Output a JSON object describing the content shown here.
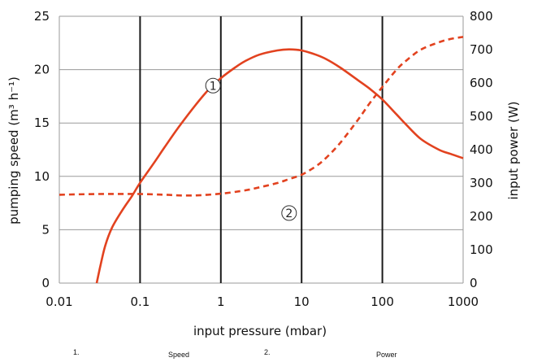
{
  "chart_data": {
    "type": "line",
    "xlabel": "input pressure (mbar)",
    "ylabel_left": "pumping speed (m³ h⁻¹)",
    "ylabel_right": "input power (W)",
    "x_scale": "log",
    "xlim": [
      0.01,
      1000
    ],
    "ylim_left": [
      0,
      25
    ],
    "ylim_right": [
      0,
      800
    ],
    "x_ticks": [
      {
        "value": 0.01,
        "label": "0.01"
      },
      {
        "value": 0.1,
        "label": "0.1"
      },
      {
        "value": 1,
        "label": "1"
      },
      {
        "value": 10,
        "label": "10"
      },
      {
        "value": 100,
        "label": "100"
      },
      {
        "value": 1000,
        "label": "1000"
      }
    ],
    "y_left_ticks": [
      {
        "value": 0,
        "label": "0"
      },
      {
        "value": 5,
        "label": "5"
      },
      {
        "value": 10,
        "label": "10"
      },
      {
        "value": 15,
        "label": "15"
      },
      {
        "value": 20,
        "label": "20"
      },
      {
        "value": 25,
        "label": "25"
      }
    ],
    "y_right_ticks": [
      {
        "value": 0,
        "label": "0"
      },
      {
        "value": 100,
        "label": "100"
      },
      {
        "value": 200,
        "label": "200"
      },
      {
        "value": 300,
        "label": "300"
      },
      {
        "value": 400,
        "label": "400"
      },
      {
        "value": 500,
        "label": "500"
      },
      {
        "value": 600,
        "label": "600"
      },
      {
        "value": 700,
        "label": "700"
      },
      {
        "value": 800,
        "label": "800"
      }
    ],
    "grid": true,
    "series": [
      {
        "marker": "1",
        "axis": "left",
        "line_style": "solid",
        "color": "#e2421f",
        "marker_at": {
          "x": 0.8,
          "y": 18.5
        },
        "points": [
          {
            "x": 0.029,
            "y": 0
          },
          {
            "x": 0.032,
            "y": 1.5
          },
          {
            "x": 0.037,
            "y": 3.5
          },
          {
            "x": 0.045,
            "y": 5.2
          },
          {
            "x": 0.06,
            "y": 6.8
          },
          {
            "x": 0.08,
            "y": 8.2
          },
          {
            "x": 0.1,
            "y": 9.4
          },
          {
            "x": 0.15,
            "y": 11.3
          },
          {
            "x": 0.2,
            "y": 12.7
          },
          {
            "x": 0.3,
            "y": 14.6
          },
          {
            "x": 0.5,
            "y": 16.8
          },
          {
            "x": 0.7,
            "y": 18.1
          },
          {
            "x": 1,
            "y": 19.2
          },
          {
            "x": 1.5,
            "y": 20.2
          },
          {
            "x": 2,
            "y": 20.8
          },
          {
            "x": 3,
            "y": 21.4
          },
          {
            "x": 5,
            "y": 21.8
          },
          {
            "x": 7,
            "y": 21.9
          },
          {
            "x": 10,
            "y": 21.8
          },
          {
            "x": 15,
            "y": 21.4
          },
          {
            "x": 20,
            "y": 21
          },
          {
            "x": 30,
            "y": 20.2
          },
          {
            "x": 50,
            "y": 19
          },
          {
            "x": 70,
            "y": 18.2
          },
          {
            "x": 100,
            "y": 17.2
          },
          {
            "x": 150,
            "y": 15.8
          },
          {
            "x": 200,
            "y": 14.8
          },
          {
            "x": 300,
            "y": 13.5
          },
          {
            "x": 500,
            "y": 12.5
          },
          {
            "x": 700,
            "y": 12.1
          },
          {
            "x": 1000,
            "y": 11.7
          }
        ]
      },
      {
        "marker": "2",
        "axis": "right",
        "line_style": "dashed",
        "color": "#e2421f",
        "marker_at": {
          "x": 7,
          "y": 210
        },
        "points": [
          {
            "x": 0.01,
            "y": 265
          },
          {
            "x": 0.03,
            "y": 267
          },
          {
            "x": 0.1,
            "y": 267
          },
          {
            "x": 0.2,
            "y": 265
          },
          {
            "x": 0.3,
            "y": 263
          },
          {
            "x": 0.5,
            "y": 263
          },
          {
            "x": 1,
            "y": 268
          },
          {
            "x": 2,
            "y": 278
          },
          {
            "x": 3,
            "y": 287
          },
          {
            "x": 5,
            "y": 300
          },
          {
            "x": 7,
            "y": 312
          },
          {
            "x": 10,
            "y": 325
          },
          {
            "x": 15,
            "y": 350
          },
          {
            "x": 20,
            "y": 375
          },
          {
            "x": 30,
            "y": 420
          },
          {
            "x": 50,
            "y": 490
          },
          {
            "x": 70,
            "y": 540
          },
          {
            "x": 100,
            "y": 588
          },
          {
            "x": 150,
            "y": 640
          },
          {
            "x": 200,
            "y": 668
          },
          {
            "x": 300,
            "y": 700
          },
          {
            "x": 500,
            "y": 722
          },
          {
            "x": 700,
            "y": 732
          },
          {
            "x": 1000,
            "y": 738
          }
        ]
      }
    ],
    "caption": [
      {
        "number": "1.",
        "label": "Speed"
      },
      {
        "number": "2.",
        "label": "Power"
      }
    ]
  }
}
